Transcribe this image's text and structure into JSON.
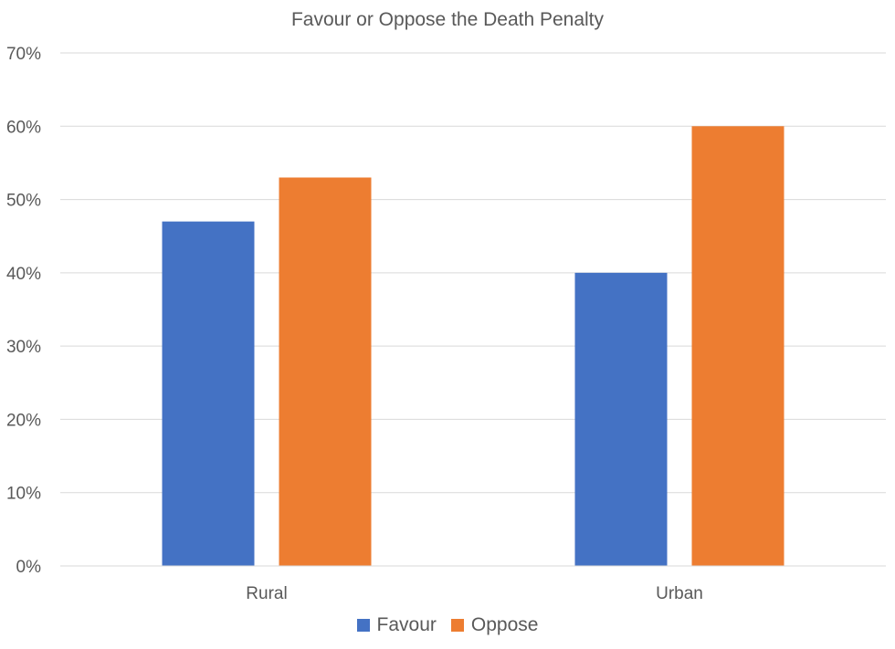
{
  "chart_data": {
    "type": "bar",
    "title": "Favour or Oppose the Death Penalty",
    "xlabel": "",
    "ylabel": "",
    "categories": [
      "Rural",
      "Urban"
    ],
    "series": [
      {
        "name": "Favour",
        "color": "#4472C4",
        "values": [
          47,
          40
        ]
      },
      {
        "name": "Oppose",
        "color": "#ED7D31",
        "values": [
          53,
          60
        ]
      }
    ],
    "ylim": [
      0,
      70
    ],
    "yticks": [
      0,
      10,
      20,
      30,
      40,
      50,
      60,
      70
    ],
    "ytick_labels": [
      "0%",
      "10%",
      "20%",
      "30%",
      "40%",
      "50%",
      "60%",
      "70%"
    ],
    "grid": true,
    "legend_position": "bottom"
  }
}
